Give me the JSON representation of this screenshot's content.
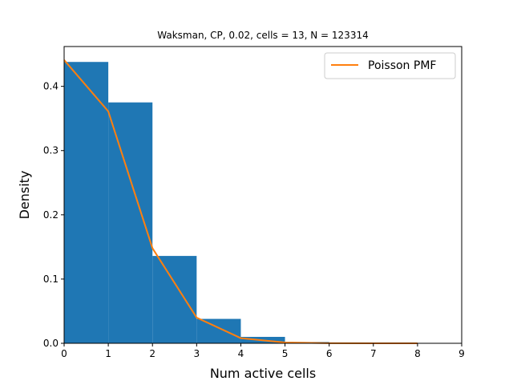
{
  "chart_data": {
    "type": "bar",
    "title": "Waksman, CP, 0.02, cells = 13, N = 123314",
    "xlabel": "Num active cells",
    "ylabel": "Density",
    "xlim": [
      0,
      9
    ],
    "ylim": [
      0,
      0.462
    ],
    "xticks": [
      0,
      1,
      2,
      3,
      4,
      5,
      6,
      7,
      8,
      9
    ],
    "xtick_labels": [
      "0",
      "1",
      "2",
      "3",
      "4",
      "5",
      "6",
      "7",
      "8",
      "9"
    ],
    "yticks": [
      0.0,
      0.1,
      0.2,
      0.3,
      0.4
    ],
    "ytick_labels": [
      "0.0",
      "0.1",
      "0.2",
      "0.3",
      "0.4"
    ],
    "legend_position": "top-right",
    "histogram": {
      "name": "histogram",
      "color": "#1f77b4",
      "bins": [
        {
          "start": 0,
          "end": 1,
          "value": 0.438
        },
        {
          "start": 1,
          "end": 2,
          "value": 0.375
        },
        {
          "start": 2,
          "end": 3,
          "value": 0.136
        },
        {
          "start": 3,
          "end": 4,
          "value": 0.038
        },
        {
          "start": 4,
          "end": 5,
          "value": 0.01
        },
        {
          "start": 5,
          "end": 6,
          "value": 0.002
        },
        {
          "start": 6,
          "end": 7,
          "value": 0.0005
        },
        {
          "start": 7,
          "end": 8,
          "value": 0.0001
        },
        {
          "start": 8,
          "end": 9,
          "value": 0.0
        }
      ]
    },
    "line": {
      "name": "Poisson PMF",
      "color": "#ff7f0e",
      "x": [
        0,
        1,
        2,
        3,
        4,
        5,
        6,
        7,
        8
      ],
      "y": [
        0.441,
        0.361,
        0.148,
        0.04,
        0.008,
        0.0013,
        0.0002,
        2e-05,
        0.0
      ]
    }
  }
}
